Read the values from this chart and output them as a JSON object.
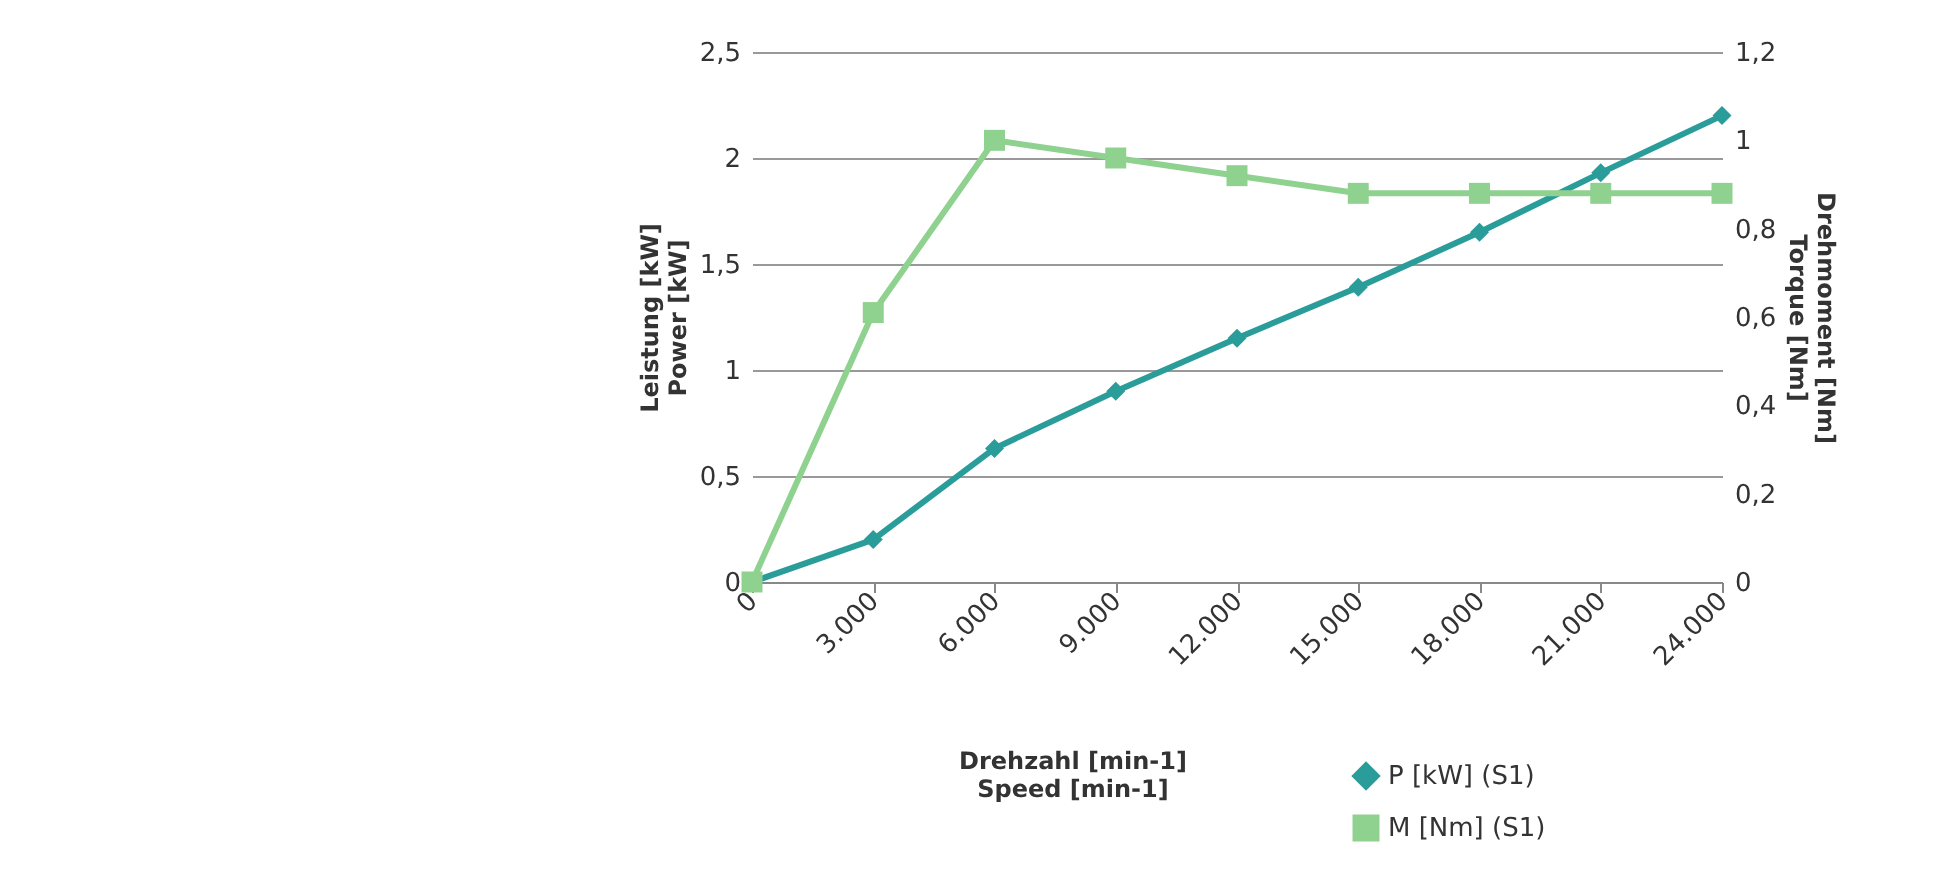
{
  "chart_data": {
    "type": "line",
    "xlabel": "Drehzahl [min-1]\nSpeed [min-1]",
    "ylabel": "Leistung [kW]\nPower [kW]",
    "y2label": "Drehmoment [Nm]\nTorque [Nm]",
    "categories": [
      "0",
      "3.000",
      "6.000",
      "9.000",
      "12.000",
      "15.000",
      "18.000",
      "21.000",
      "24.000"
    ],
    "series": [
      {
        "name": "P [kW]  (S1)",
        "color": "#2a9d9a",
        "marker": "diamond",
        "values": [
          0,
          0.2,
          0.63,
          0.9,
          1.15,
          1.39,
          1.65,
          1.93,
          2.2
        ]
      },
      {
        "name": "M [Nm]  (S1)",
        "color": "#8fd18f",
        "marker": "square",
        "axis": "y2",
        "values": [
          0,
          0.61,
          1.0,
          0.96,
          0.92,
          0.88,
          0.88,
          0.88,
          0.88
        ]
      }
    ],
    "ylim": [
      0,
      2.5
    ],
    "yticks": [
      0,
      {
        "value": 0.5,
        "label": "0,5"
      },
      1,
      {
        "value": 1.5,
        "label": "1,5"
      },
      2,
      {
        "value": 2.5,
        "label": "2,5"
      }
    ],
    "y2lim": [
      0,
      1.2
    ],
    "y2ticks": [
      0,
      {
        "value": 0.2,
        "label": "0,2"
      },
      {
        "value": 0.4,
        "label": "0,4"
      },
      {
        "value": 0.6,
        "label": "0,6"
      },
      {
        "value": 0.8,
        "label": "0,8"
      },
      1,
      {
        "value": 1.2,
        "label": "1,2"
      }
    ],
    "grid": "y",
    "legend": "bottom right"
  }
}
